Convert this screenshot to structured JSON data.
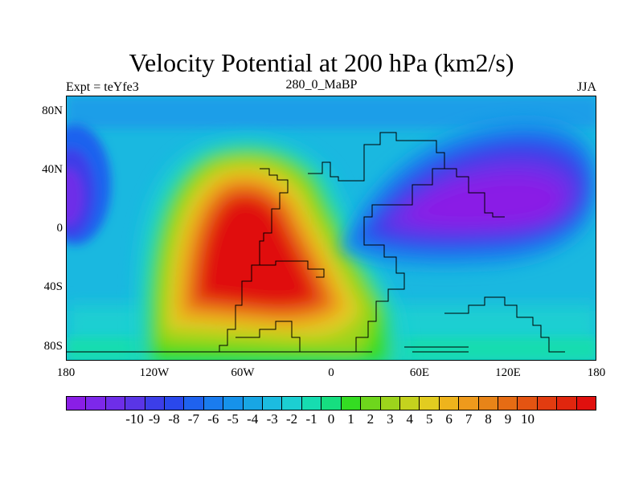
{
  "chart_data": {
    "type": "heatmap",
    "title": "Velocity Potential at 200 hPa (km2/s)",
    "left_label": "Expt = teYfe3",
    "center_label": "280_0_MaBP",
    "right_label": "JJA",
    "x_ticks": [
      {
        "value": -180,
        "label": "180"
      },
      {
        "value": -120,
        "label": "120W"
      },
      {
        "value": -60,
        "label": "60W"
      },
      {
        "value": 0,
        "label": "0"
      },
      {
        "value": 60,
        "label": "60E"
      },
      {
        "value": 120,
        "label": "120E"
      },
      {
        "value": 180,
        "label": "180"
      }
    ],
    "y_ticks": [
      {
        "value": 80,
        "label": "80N"
      },
      {
        "value": 40,
        "label": "40N"
      },
      {
        "value": 0,
        "label": "0"
      },
      {
        "value": -40,
        "label": "40S"
      },
      {
        "value": -80,
        "label": "80S"
      }
    ],
    "xlim": [
      -180,
      180
    ],
    "ylim": [
      -90,
      90
    ],
    "colorbar": {
      "labels": [
        "-10",
        "-9",
        "-8",
        "-7",
        "-6",
        "-5",
        "-4",
        "-3",
        "-2",
        "-1",
        "0",
        "1",
        "2",
        "3",
        "4",
        "5",
        "6",
        "7",
        "8",
        "9",
        "10"
      ],
      "colors": [
        "#8a1ee6",
        "#7d28ea",
        "#6e2ee8",
        "#5a35e6",
        "#3c3ee8",
        "#2a48ec",
        "#1f62ee",
        "#1a7cee",
        "#1692ea",
        "#18a6e4",
        "#1cbce0",
        "#1ccfd2",
        "#16dcb0",
        "#16de80",
        "#34dc22",
        "#6ed61c",
        "#9cd41c",
        "#c4d21e",
        "#e2cc20",
        "#eeb41c",
        "#ee9a1c",
        "#e88418",
        "#e66c14",
        "#e45412",
        "#e23c10",
        "#e0260e",
        "#e0100e"
      ],
      "min": -10,
      "max": 10
    },
    "field_features": [
      {
        "name": "maximum",
        "lon": -40,
        "lat": -10,
        "value": 10
      },
      {
        "name": "minimum-asia",
        "lon": 110,
        "lat": 10,
        "value": -10
      },
      {
        "name": "minimum-pacific",
        "lon": -175,
        "lat": 25,
        "value": -8
      }
    ]
  }
}
